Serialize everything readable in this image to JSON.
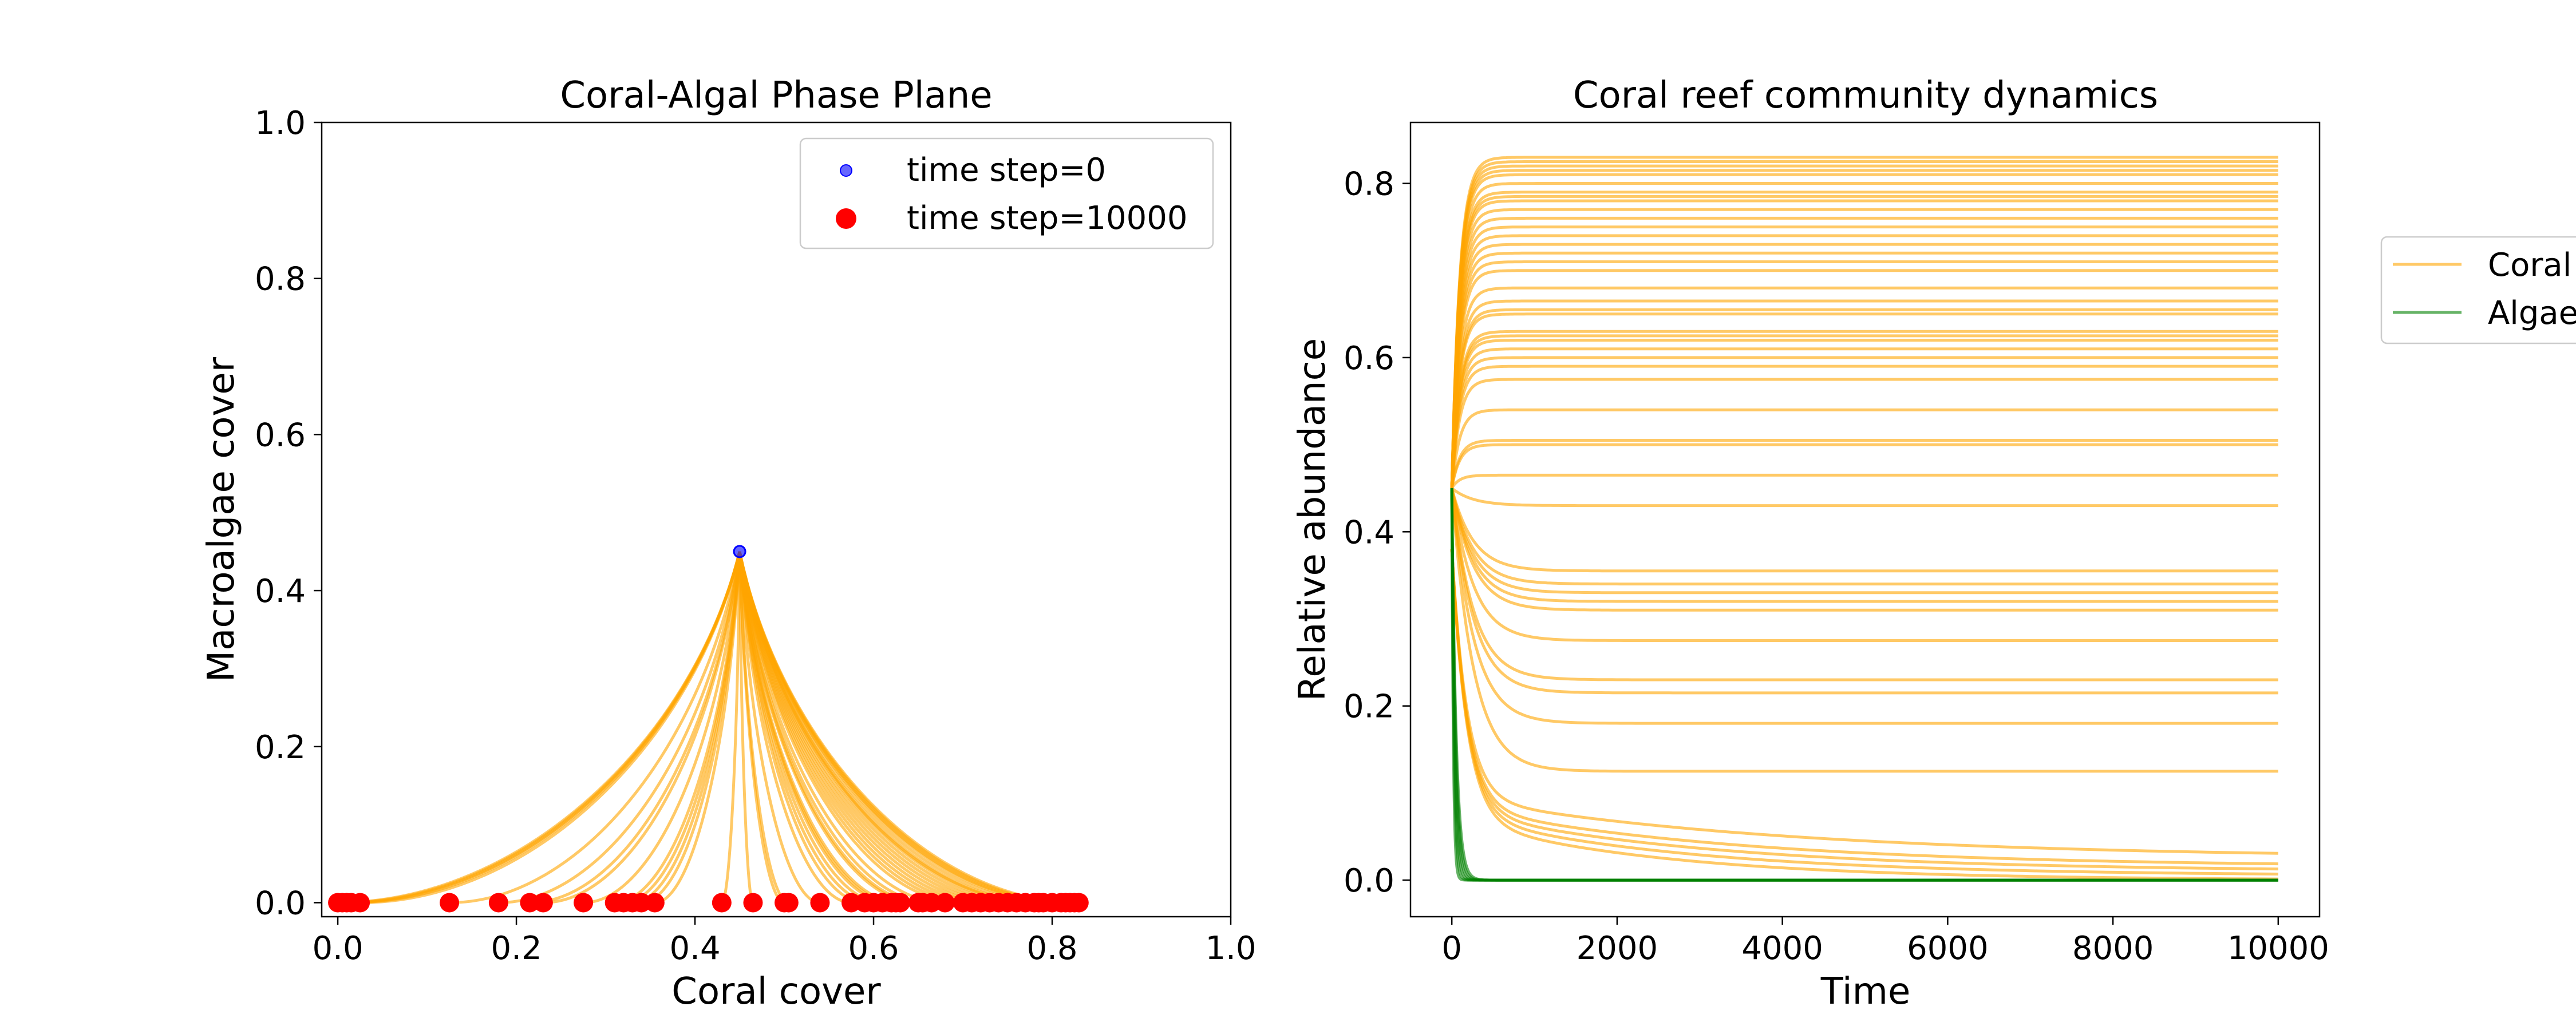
{
  "colors": {
    "coral": "#ffa500",
    "algae": "#008000",
    "start_point": "#0000ff",
    "end_point": "#ff0000",
    "axes": "#000000",
    "legend_frame": "#cccccc"
  },
  "chart_data": [
    {
      "type": "scatter",
      "title": "Coral-Algal Phase Plane",
      "xlabel": "Coral cover",
      "ylabel": "Macroalgae cover",
      "xlim": [
        0.0,
        1.0
      ],
      "ylim": [
        0.0,
        1.0
      ],
      "xticks": [
        "0.0",
        "0.2",
        "0.4",
        "0.6",
        "0.8",
        "1.0"
      ],
      "yticks": [
        "0.0",
        "0.2",
        "0.4",
        "0.6",
        "0.8",
        "1.0"
      ],
      "legend_placement": "upper right",
      "grid": false,
      "start_point": {
        "x": 0.45,
        "y": 0.45
      },
      "trajectories": "paths from (0.45, 0.45) to each final coral value with macroalgae 0",
      "series": [
        {
          "name": "time step=0",
          "marker": "small blue dot",
          "color": "#0000ff",
          "points": [
            [
              0.45,
              0.45
            ]
          ]
        },
        {
          "name": "time step=10000",
          "marker": "large red dot",
          "color": "#ff0000",
          "x": [
            0.0,
            0.005,
            0.01,
            0.015,
            0.025,
            0.125,
            0.18,
            0.215,
            0.23,
            0.275,
            0.31,
            0.32,
            0.33,
            0.34,
            0.355,
            0.43,
            0.465,
            0.5,
            0.505,
            0.54,
            0.575,
            0.59,
            0.6,
            0.61,
            0.62,
            0.625,
            0.63,
            0.65,
            0.655,
            0.665,
            0.68,
            0.7,
            0.71,
            0.72,
            0.73,
            0.74,
            0.75,
            0.76,
            0.77,
            0.78,
            0.785,
            0.79,
            0.8,
            0.81,
            0.815,
            0.82,
            0.825,
            0.83
          ],
          "y_constant": 0.0
        }
      ]
    },
    {
      "type": "line",
      "title": "Coral reef community dynamics",
      "xlabel": "Time",
      "ylabel": "Relative abundance",
      "xlim": [
        -500,
        10500
      ],
      "ylim": [
        -0.042,
        0.87
      ],
      "xticks": [
        "0",
        "2000",
        "4000",
        "6000",
        "8000",
        "10000"
      ],
      "yticks": [
        "0.0",
        "0.2",
        "0.4",
        "0.6",
        "0.8"
      ],
      "legend_placement": "outside right",
      "grid": false,
      "initial_value": 0.45,
      "time_points": [
        0,
        10000
      ],
      "series": [
        {
          "name": "Coral",
          "color": "#ffa500",
          "final_values": [
            0.0,
            0.005,
            0.01,
            0.015,
            0.025,
            0.125,
            0.18,
            0.215,
            0.23,
            0.275,
            0.31,
            0.32,
            0.33,
            0.34,
            0.355,
            0.43,
            0.465,
            0.5,
            0.505,
            0.54,
            0.575,
            0.59,
            0.6,
            0.61,
            0.62,
            0.625,
            0.63,
            0.65,
            0.655,
            0.665,
            0.68,
            0.7,
            0.71,
            0.72,
            0.73,
            0.74,
            0.75,
            0.76,
            0.77,
            0.78,
            0.785,
            0.79,
            0.8,
            0.81,
            0.815,
            0.82,
            0.825,
            0.83
          ]
        },
        {
          "name": "Algae",
          "color": "#008000",
          "final_values": [
            0.0
          ]
        }
      ]
    }
  ]
}
